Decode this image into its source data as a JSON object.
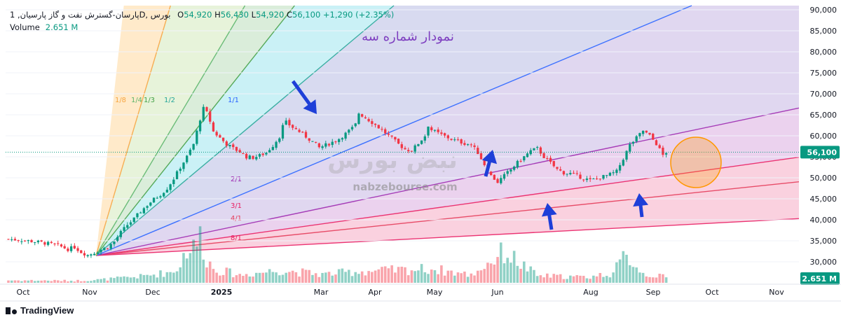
{
  "header": {
    "symbol_line": "پارسان-گسترش نفت و گاز پارسیان, 1D, بورس",
    "open_label": "O",
    "open": "54,920",
    "high_label": "H",
    "high": "56,430",
    "low_label": "L",
    "low": "54,920",
    "close_label": "C",
    "close": "56,100",
    "change": "+1,290 (+2.35%)",
    "volume_label": "Volume",
    "volume_value": "2.651 M"
  },
  "annotation_title": "نمودار شماره سه",
  "watermark": {
    "text_fa": "نبض بورس",
    "url": "nabzebourse.com"
  },
  "branding": "TradingView",
  "colors": {
    "up": "#089981",
    "down": "#f23645",
    "fan_top": "#2962ff",
    "fan_purple": "#9c27b0",
    "fan_red": "#e91e63",
    "circle": "#ff9800",
    "arrow": "#1e3fd8",
    "title": "#7e3fc0"
  },
  "chart_data": {
    "type": "candlestick",
    "x_axis_labels": [
      "Oct",
      "Nov",
      "Dec",
      "2025",
      "Mar",
      "Apr",
      "May",
      "Jun",
      "Aug",
      "Sep",
      "Oct",
      "Nov"
    ],
    "y_axis_labels": [
      "90,000",
      "85,000",
      "80,000",
      "75,000",
      "70,000",
      "65,000",
      "60,000",
      "55,000",
      "50,000",
      "45,000",
      "40,000",
      "35,000",
      "30,000"
    ],
    "ylim": [
      27500,
      90500
    ],
    "last_price": "56,100",
    "last_volume": "2.651 M",
    "gann_fan_labels": [
      "1/8",
      "1/4",
      "1/3",
      "1/2",
      "1/1",
      "2/1",
      "3/1",
      "4/1",
      "8/1"
    ],
    "gann_fan_origin_price": 31500,
    "price_path": [
      [
        0,
        35400
      ],
      [
        5,
        35100
      ],
      [
        10,
        34600
      ],
      [
        15,
        33900
      ],
      [
        18,
        33000
      ],
      [
        20,
        33500
      ],
      [
        22,
        32300
      ],
      [
        24,
        31600
      ],
      [
        26,
        32200
      ],
      [
        28,
        32900
      ],
      [
        30,
        33500
      ],
      [
        32,
        34800
      ],
      [
        34,
        37000
      ],
      [
        36,
        38800
      ],
      [
        38,
        40200
      ],
      [
        40,
        42000
      ],
      [
        42,
        43500
      ],
      [
        44,
        44900
      ],
      [
        46,
        46000
      ],
      [
        48,
        47500
      ],
      [
        50,
        49800
      ],
      [
        52,
        52500
      ],
      [
        54,
        55000
      ],
      [
        56,
        58000
      ],
      [
        57,
        61000
      ],
      [
        58,
        64000
      ],
      [
        59,
        66500
      ],
      [
        60,
        65500
      ],
      [
        61,
        63500
      ],
      [
        62,
        61000
      ],
      [
        64,
        59500
      ],
      [
        66,
        58000
      ],
      [
        68,
        57000
      ],
      [
        70,
        56200
      ],
      [
        72,
        55000
      ],
      [
        74,
        54800
      ],
      [
        76,
        55300
      ],
      [
        78,
        56000
      ],
      [
        80,
        57700
      ],
      [
        82,
        59800
      ],
      [
        83,
        62300
      ],
      [
        84,
        63200
      ],
      [
        86,
        62000
      ],
      [
        88,
        61000
      ],
      [
        90,
        59800
      ],
      [
        92,
        58600
      ],
      [
        94,
        57200
      ],
      [
        96,
        57800
      ],
      [
        98,
        58500
      ],
      [
        100,
        59300
      ],
      [
        102,
        60500
      ],
      [
        104,
        61800
      ],
      [
        105,
        62700
      ],
      [
        106,
        65400
      ],
      [
        108,
        64300
      ],
      [
        110,
        63200
      ],
      [
        112,
        62000
      ],
      [
        114,
        60700
      ],
      [
        116,
        59400
      ],
      [
        118,
        58000
      ],
      [
        120,
        56800
      ],
      [
        122,
        56500
      ],
      [
        124,
        58200
      ],
      [
        126,
        60000
      ],
      [
        127,
        62500
      ],
      [
        128,
        61400
      ],
      [
        130,
        60600
      ],
      [
        132,
        59900
      ],
      [
        134,
        59200
      ],
      [
        136,
        58700
      ],
      [
        138,
        58200
      ],
      [
        140,
        57900
      ],
      [
        142,
        56000
      ],
      [
        144,
        53200
      ],
      [
        146,
        50500
      ],
      [
        148,
        49000
      ],
      [
        150,
        50500
      ],
      [
        152,
        52000
      ],
      [
        154,
        53600
      ],
      [
        156,
        55000
      ],
      [
        158,
        56400
      ],
      [
        160,
        57000
      ],
      [
        162,
        55000
      ],
      [
        164,
        53500
      ],
      [
        166,
        52000
      ],
      [
        168,
        51200
      ],
      [
        170,
        51000
      ],
      [
        172,
        50500
      ],
      [
        174,
        49900
      ],
      [
        176,
        49400
      ],
      [
        178,
        49800
      ],
      [
        180,
        50300
      ],
      [
        182,
        50800
      ],
      [
        184,
        51500
      ],
      [
        186,
        54600
      ],
      [
        188,
        57800
      ],
      [
        190,
        59500
      ],
      [
        192,
        61200
      ],
      [
        194,
        60000
      ],
      [
        196,
        58100
      ],
      [
        198,
        55400
      ],
      [
        199,
        56100
      ]
    ],
    "volume_path": [
      [
        0,
        0.35
      ],
      [
        20,
        0.3
      ],
      [
        28,
        0.45
      ],
      [
        40,
        0.9
      ],
      [
        50,
        1.6
      ],
      [
        52,
        2.7
      ],
      [
        54,
        5.0
      ],
      [
        56,
        4.8
      ],
      [
        58,
        6.6
      ],
      [
        60,
        3.5
      ],
      [
        62,
        2.0
      ],
      [
        70,
        1.1
      ],
      [
        82,
        1.8
      ],
      [
        95,
        1.2
      ],
      [
        105,
        1.6
      ],
      [
        118,
        1.8
      ],
      [
        128,
        2.0
      ],
      [
        140,
        1.1
      ],
      [
        150,
        4.4
      ],
      [
        160,
        1.0
      ],
      [
        175,
        0.8
      ],
      [
        183,
        1.4
      ],
      [
        186,
        3.4
      ],
      [
        188,
        3.6
      ],
      [
        192,
        1.3
      ],
      [
        199,
        0.8
      ]
    ],
    "annotations": [
      "4 blue arrows marking touches of the lower fan lines",
      "orange circle around the latest candles"
    ]
  }
}
